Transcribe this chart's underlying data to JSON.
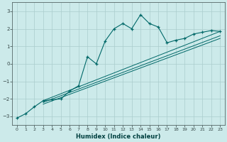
{
  "xlabel": "Humidex (Indice chaleur)",
  "background_color": "#cceaea",
  "line_color": "#006868",
  "grid_color": "#aacccc",
  "xlim": [
    -0.5,
    23.5
  ],
  "ylim": [
    -3.5,
    3.5
  ],
  "yticks": [
    -3,
    -2,
    -1,
    0,
    1,
    2,
    3
  ],
  "xticks": [
    0,
    1,
    2,
    3,
    4,
    5,
    6,
    7,
    8,
    9,
    10,
    11,
    12,
    13,
    14,
    15,
    16,
    17,
    18,
    19,
    20,
    21,
    22,
    23
  ],
  "main_line_x": [
    0,
    1,
    2,
    3,
    4,
    5,
    6,
    7,
    8,
    9,
    10,
    11,
    12,
    13,
    14,
    15,
    16,
    17,
    18,
    19,
    20,
    21,
    22,
    23
  ],
  "main_line_y": [
    -3.1,
    -2.85,
    -2.45,
    -2.1,
    -2.05,
    -2.0,
    -1.55,
    -1.25,
    0.4,
    0.0,
    1.3,
    2.0,
    2.3,
    2.0,
    2.8,
    2.3,
    2.1,
    1.2,
    1.35,
    1.45,
    1.7,
    1.8,
    1.9,
    1.85
  ],
  "line1_x": [
    3,
    23
  ],
  "line1_y": [
    -2.1,
    1.85
  ],
  "line2_x": [
    3,
    23
  ],
  "line2_y": [
    -2.2,
    1.6
  ],
  "line3_x": [
    3,
    23
  ],
  "line3_y": [
    -2.3,
    1.45
  ]
}
